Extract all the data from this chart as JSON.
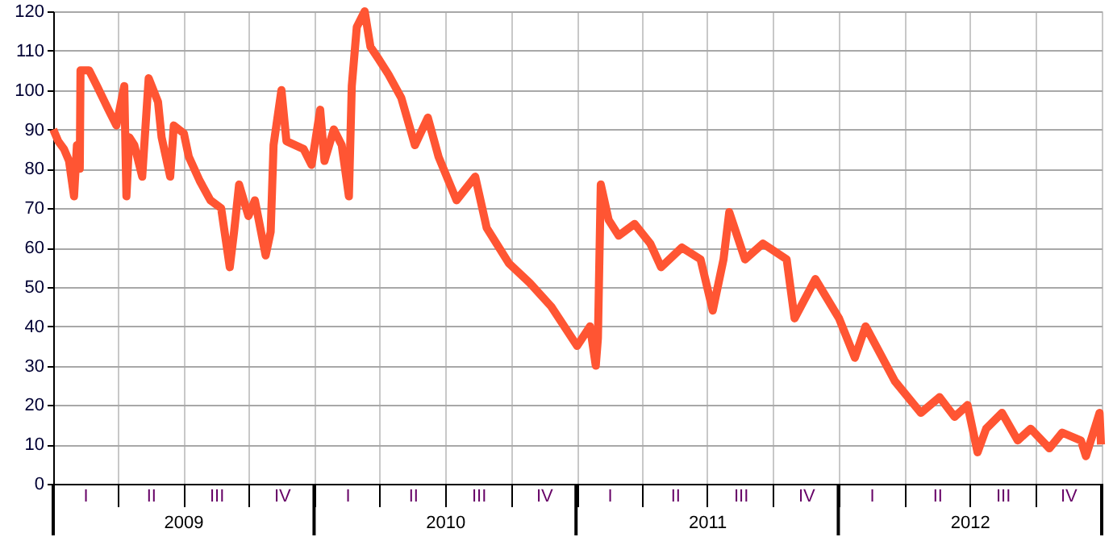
{
  "chart_data": {
    "type": "line",
    "xlim": [
      "2009-01-01",
      "2013-01-01"
    ],
    "ylim": [
      0,
      120
    ],
    "yticks": [
      0,
      10,
      20,
      30,
      40,
      50,
      60,
      70,
      80,
      90,
      100,
      110,
      120
    ],
    "xticks": [
      {
        "value": "2009-01-01",
        "label": null
      },
      {
        "value": "2009-04-01",
        "label": null
      },
      {
        "value": "2009-07-01",
        "label": "2009"
      },
      {
        "value": "2009-10-01",
        "label": null
      },
      {
        "value": "2010-01-01",
        "label": null
      },
      {
        "value": "2010-04-01",
        "label": null
      },
      {
        "value": "2010-07-01",
        "label": "2010"
      },
      {
        "value": "2010-10-01",
        "label": null
      },
      {
        "value": "2011-01-01",
        "label": null
      },
      {
        "value": "2011-04-01",
        "label": null
      },
      {
        "value": "2011-07-01",
        "label": "2011"
      },
      {
        "value": "2011-10-01",
        "label": null
      },
      {
        "value": "2012-01-01",
        "label": null
      },
      {
        "value": "2012-04-01",
        "label": null
      },
      {
        "value": "2012-07-01",
        "label": "2012"
      },
      {
        "value": "2012-10-01",
        "label": null
      },
      {
        "value": "2013-01-01",
        "label": null
      }
    ],
    "annotations": [
      "I",
      "II",
      "III",
      "IV",
      "I",
      "II",
      "III",
      "IV",
      "I",
      "II",
      "III",
      "IV",
      "I",
      "II",
      "III",
      "IV"
    ],
    "grid": true,
    "line_style": "solid",
    "marker": "none",
    "series": [
      {
        "color": "#ff5533",
        "x": [
          "2009-01-01",
          "2009-01-08",
          "2009-01-16",
          "2009-01-23",
          "2009-01-30",
          "2009-02-03",
          "2009-02-07",
          "2009-02-08",
          "2009-02-20",
          "2009-03-03",
          "2009-03-19",
          "2009-03-30",
          "2009-04-10",
          "2009-04-13",
          "2009-04-17",
          "2009-04-24",
          "2009-05-05",
          "2009-05-14",
          "2009-05-27",
          "2009-06-01",
          "2009-06-13",
          "2009-06-18",
          "2009-07-02",
          "2009-07-09",
          "2009-07-24",
          "2009-08-08",
          "2009-08-23",
          "2009-09-04",
          "2009-09-10",
          "2009-09-17",
          "2009-09-30",
          "2009-10-09",
          "2009-10-24",
          "2009-10-31",
          "2009-11-04",
          "2009-11-15",
          "2009-11-22",
          "2009-12-16",
          "2009-12-27",
          "2010-01-08",
          "2010-01-14",
          "2010-01-27",
          "2010-02-07",
          "2010-02-17",
          "2010-02-21",
          "2010-02-28",
          "2010-03-11",
          "2010-03-19",
          "2010-03-30",
          "2010-04-13",
          "2010-05-01",
          "2010-05-20",
          "2010-06-07",
          "2010-06-22",
          "2010-07-17",
          "2010-08-12",
          "2010-08-28",
          "2010-09-28",
          "2010-10-27",
          "2010-11-26",
          "2011-01-01",
          "2011-01-19",
          "2011-01-27",
          "2011-01-30",
          "2011-02-03",
          "2011-02-14",
          "2011-02-28",
          "2011-03-22",
          "2011-04-13",
          "2011-04-28",
          "2011-05-27",
          "2011-06-22",
          "2011-07-09",
          "2011-07-24",
          "2011-08-01",
          "2011-08-23",
          "2011-09-17",
          "2011-10-20",
          "2011-10-31",
          "2011-11-29",
          "2012-01-01",
          "2012-01-23",
          "2012-02-07",
          "2012-03-19",
          "2012-04-24",
          "2012-05-20",
          "2012-06-10",
          "2012-06-28",
          "2012-07-12",
          "2012-07-24",
          "2012-08-15",
          "2012-09-06",
          "2012-09-24",
          "2012-10-20",
          "2012-11-07",
          "2012-12-03",
          "2012-12-10",
          "2012-12-29",
          "2012-12-31"
        ],
        "values": [
          90,
          87,
          85,
          82,
          73,
          86,
          80,
          105,
          105,
          101,
          95,
          91,
          101,
          73,
          88,
          86,
          78,
          103,
          97,
          88,
          78,
          91,
          89,
          83,
          77,
          72,
          70,
          55,
          64,
          76,
          68,
          72,
          58,
          64,
          86,
          100,
          87,
          85,
          81,
          95,
          82,
          90,
          86,
          73,
          101,
          116,
          120,
          111,
          108,
          104,
          98,
          86,
          93,
          83,
          72,
          78,
          65,
          56,
          51,
          45,
          35,
          40,
          30,
          37,
          76,
          67,
          63,
          66,
          61,
          55,
          60,
          57,
          44,
          57,
          69,
          57,
          61,
          57,
          42,
          52,
          42,
          32,
          40,
          26,
          18,
          22,
          17,
          20,
          8,
          14,
          18,
          11,
          14,
          9,
          13,
          11,
          7,
          18,
          10
        ]
      }
    ]
  }
}
